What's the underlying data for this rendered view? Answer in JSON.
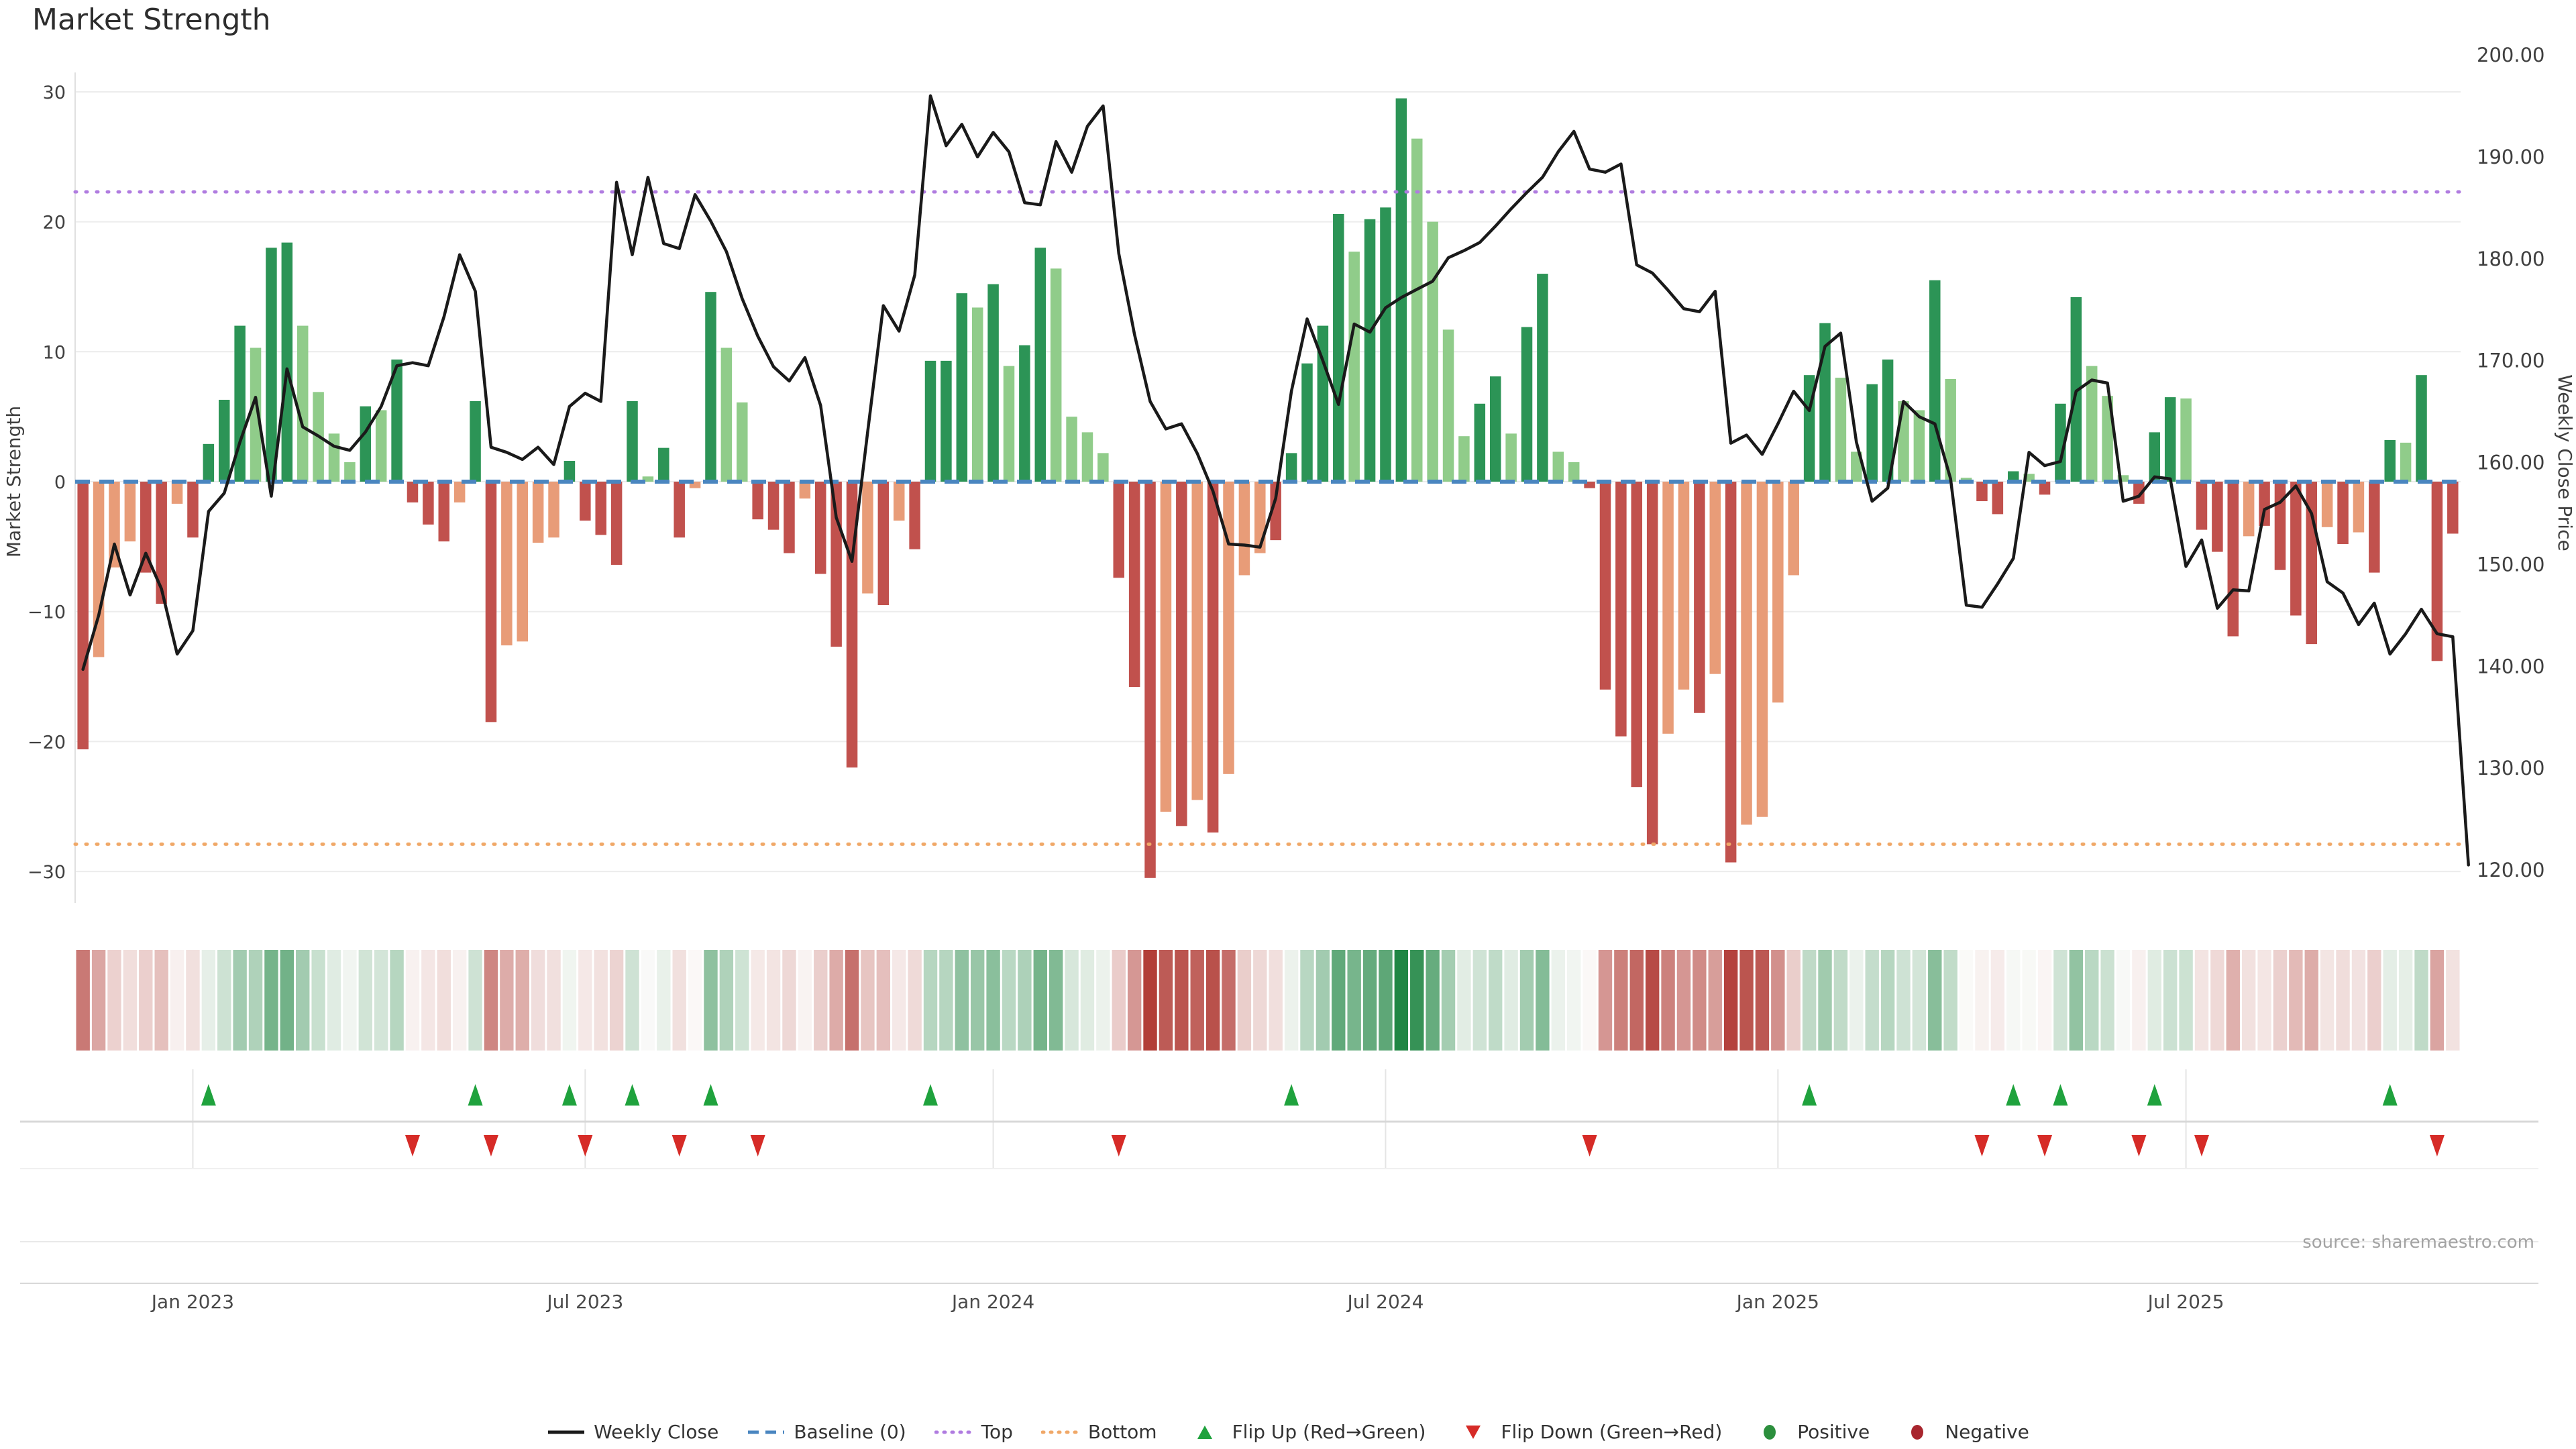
{
  "title": "Market Strength",
  "source": "source: sharemaestro.com",
  "colors": {
    "bar_pos_dark": "#2c9456",
    "bar_pos_light": "#90cc8a",
    "bar_neg_dark": "#c1514d",
    "bar_neg_light": "#e89c78",
    "price_line": "#1a1a1a",
    "baseline": "#4a86c0",
    "top_line": "#b07ce0",
    "bottom_line": "#f0a868",
    "heat_pos": "#1b8440",
    "heat_neg": "#b23e38",
    "heat_mid": "#fcfbfa",
    "flip_up": "#1fa23d",
    "flip_down": "#d62b27",
    "grid": "#ececec",
    "axis_line": "#d8d8d8"
  },
  "legend": {
    "items": [
      {
        "id": "weekly-close",
        "glyph": "line",
        "color": "#1a1a1a",
        "label": "Weekly Close"
      },
      {
        "id": "baseline",
        "glyph": "dash",
        "color": "#4a86c0",
        "label": "Baseline (0)"
      },
      {
        "id": "top",
        "glyph": "dots",
        "color": "#b07ce0",
        "label": "Top"
      },
      {
        "id": "bottom",
        "glyph": "dots",
        "color": "#f0a868",
        "label": "Bottom"
      },
      {
        "id": "flip-up",
        "glyph": "triangle-up",
        "color": "#1fa23d",
        "label": "Flip Up (Red→Green)"
      },
      {
        "id": "flip-down",
        "glyph": "triangle-down",
        "color": "#d62b27",
        "label": "Flip Down (Green→Red)"
      },
      {
        "id": "positive",
        "glyph": "circle",
        "color": "#2c8f3d",
        "label": "Positive"
      },
      {
        "id": "negative",
        "glyph": "circle",
        "color": "#a8262e",
        "label": "Negative"
      }
    ]
  },
  "chart_data": {
    "type": "bar",
    "subtype": "weekly-strength-bars-with-price-line-heatmap-and-flip-markers",
    "n_weeks": 152,
    "start_week": "2022-11-13",
    "y_left": {
      "title": "Market Strength",
      "ticks": [
        {
          "v": 30,
          "label": "30"
        },
        {
          "v": 20,
          "label": "20"
        },
        {
          "v": 10,
          "label": "10"
        },
        {
          "v": 0,
          "label": "0"
        },
        {
          "v": -10,
          "label": "−10"
        },
        {
          "v": -20,
          "label": "−20"
        },
        {
          "v": -30,
          "label": "−30"
        }
      ],
      "range": [
        -33.5,
        31.4
      ]
    },
    "y_right": {
      "title": "Weekly Close Price",
      "tick_values": [
        200,
        190,
        180,
        170,
        160,
        150,
        140,
        130,
        120
      ],
      "tick_labels": [
        "200.00",
        "190.00",
        "180.00",
        "170.00",
        "160.00",
        "150.00",
        "140.00",
        "130.00",
        "120.00"
      ]
    },
    "x_ticks": [
      {
        "week": 7,
        "label": "Jan 2023"
      },
      {
        "week": 32,
        "label": "Jul 2023"
      },
      {
        "week": 58,
        "label": "Jan 2024"
      },
      {
        "week": 83,
        "label": "Jul 2024"
      },
      {
        "week": 108,
        "label": "Jan 2025"
      },
      {
        "week": 134,
        "label": "Jul 2025"
      }
    ],
    "reference_lines": {
      "baseline": {
        "label": "Baseline (0)",
        "value": 0,
        "style": "dashed"
      },
      "top": {
        "label": "Top",
        "value": 22.3,
        "style": "dotted"
      },
      "bottom": {
        "label": "Bottom",
        "value": -27.9,
        "style": "dotted"
      }
    },
    "strength": [
      -20.6,
      -13.5,
      -6.6,
      -4.6,
      -7.0,
      -9.4,
      -1.7,
      -4.3,
      2.9,
      6.3,
      12.0,
      10.3,
      18.0,
      18.4,
      12.0,
      6.9,
      3.7,
      1.5,
      5.8,
      5.5,
      9.4,
      -1.6,
      -3.3,
      -4.6,
      -1.6,
      6.2,
      -18.5,
      -12.6,
      -12.3,
      -4.7,
      -4.3,
      1.6,
      -3.0,
      -4.1,
      -6.4,
      6.2,
      0.4,
      2.6,
      -4.3,
      -0.5,
      14.6,
      10.3,
      6.1,
      -2.9,
      -3.7,
      -5.5,
      -1.3,
      -7.1,
      -12.7,
      -22.0,
      -8.6,
      -9.5,
      -3.0,
      -5.2,
      9.3,
      9.3,
      14.5,
      13.4,
      15.2,
      8.9,
      10.5,
      18.0,
      16.4,
      5.0,
      3.8,
      2.2,
      -7.4,
      -15.8,
      -30.5,
      -25.4,
      -26.5,
      -24.5,
      -27.0,
      -22.5,
      -7.2,
      -5.5,
      -4.5,
      2.2,
      9.1,
      12.0,
      20.6,
      17.7,
      20.2,
      21.1,
      29.5,
      26.4,
      20.0,
      11.7,
      3.5,
      6.0,
      8.1,
      3.7,
      11.9,
      16.0,
      2.3,
      1.5,
      -0.5,
      -16.0,
      -19.6,
      -23.5,
      -27.9,
      -19.4,
      -16.0,
      -17.8,
      -14.8,
      -29.3,
      -26.4,
      -25.8,
      -17.0,
      -7.2,
      8.2,
      12.2,
      8.0,
      2.3,
      7.5,
      9.4,
      6.2,
      5.5,
      15.5,
      7.9,
      0.3,
      -1.5,
      -2.5,
      0.8,
      0.6,
      -1.0,
      6.0,
      14.2,
      8.9,
      6.6,
      0.5,
      -1.7,
      3.8,
      6.5,
      6.4,
      -3.7,
      -5.4,
      -11.9,
      -4.2,
      -3.4,
      -6.8,
      -10.3,
      -12.5,
      -3.5,
      -4.8,
      -3.9,
      -7.0,
      3.2,
      3.0,
      8.2,
      -13.8,
      -4.0
    ],
    "strength_shade_segments": [
      "dlllddld",
      "dddlddlllldld",
      "dddl",
      "d",
      "dllll",
      "d",
      "ddd",
      "dld",
      "dl",
      "dll",
      "dddldddldld",
      "dddldlddllll",
      "dddldldllld",
      "ddddldddllllddlddll",
      "dddddlldldllll",
      "ddllddlldll",
      "dd",
      "dl",
      "d",
      "ddlll",
      "d",
      "ddl",
      "dddlddddldld",
      "dld",
      "dd"
    ],
    "price": [
      139.7,
      145.0,
      152.0,
      147.0,
      151.1,
      147.6,
      141.2,
      143.5,
      155.2,
      157.0,
      162.0,
      166.4,
      156.7,
      169.2,
      163.5,
      162.6,
      161.6,
      161.2,
      163.0,
      165.5,
      169.5,
      169.8,
      169.5,
      174.3,
      180.4,
      176.8,
      161.5,
      161.0,
      160.3,
      161.5,
      159.8,
      165.5,
      166.8,
      166.0,
      187.5,
      180.4,
      188.0,
      181.5,
      181.0,
      186.3,
      183.7,
      180.7,
      176.1,
      172.4,
      169.4,
      168.0,
      170.3,
      165.6,
      154.6,
      150.3,
      163.0,
      175.4,
      172.9,
      178.4,
      196.0,
      191.1,
      193.2,
      190.0,
      192.4,
      190.5,
      185.5,
      185.3,
      191.5,
      188.5,
      193.0,
      195.0,
      180.5,
      172.6,
      166.0,
      163.3,
      163.8,
      160.9,
      157.2,
      152.0,
      151.9,
      151.7,
      156.5,
      167.0,
      174.1,
      170.0,
      165.7,
      173.6,
      172.8,
      175.2,
      176.2,
      177.0,
      177.8,
      180.1,
      180.8,
      181.6,
      183.2,
      184.9,
      186.5,
      188.0,
      190.5,
      192.5,
      188.8,
      188.5,
      189.3,
      179.4,
      178.6,
      176.9,
      175.1,
      174.8,
      176.8,
      161.9,
      162.7,
      160.8,
      163.8,
      167.0,
      165.1,
      171.4,
      172.7,
      162.0,
      156.2,
      157.5,
      166.0,
      164.5,
      163.8,
      158.4,
      146.0,
      145.8,
      148.1,
      150.6,
      161.0,
      159.7,
      160.1,
      167.0,
      168.1,
      167.8,
      156.2,
      156.7,
      158.6,
      158.4,
      149.8,
      152.4,
      145.7,
      147.5,
      147.4,
      155.4,
      156.1,
      157.7,
      155.0,
      148.3,
      147.2,
      144.1,
      146.2,
      141.2,
      143.2,
      145.6,
      143.2,
      142.9,
      120.5
    ],
    "flip_up_weeks": [
      8,
      25,
      31,
      35,
      40,
      54,
      77,
      110,
      123,
      126,
      132,
      147
    ],
    "flip_down_weeks": [
      21,
      26,
      32,
      38,
      43,
      66,
      96,
      121,
      125,
      131,
      135,
      150
    ]
  }
}
